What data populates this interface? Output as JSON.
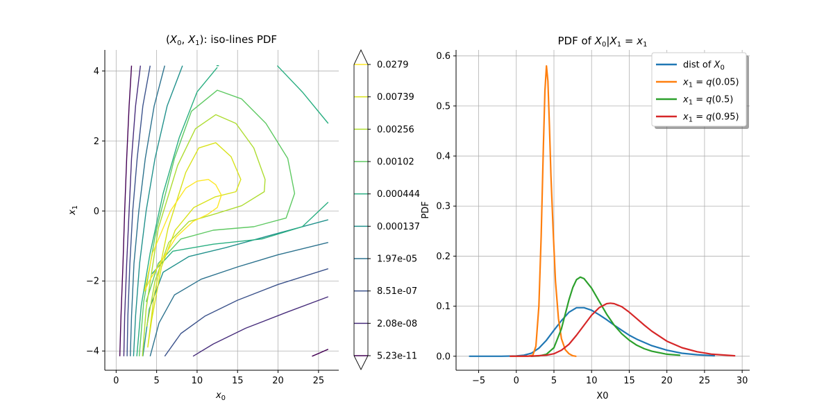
{
  "chart_data": [
    {
      "type": "contour",
      "title": "(X0, X1): iso-lines PDF",
      "title_parts": {
        "open": "(",
        "v0": "X",
        "s0": "0",
        "comma": ", ",
        "v1": "X",
        "s1": "1",
        "close": "): iso-lines PDF"
      },
      "xlabel": {
        "v": "x",
        "s": "0"
      },
      "ylabel": {
        "v": "x",
        "s": "1"
      },
      "xlim": [
        -1.4,
        27.5
      ],
      "ylim": [
        -4.55,
        4.6
      ],
      "xticks": [
        0,
        5,
        10,
        15,
        20,
        25
      ],
      "yticks": [
        -4,
        -2,
        0,
        2,
        4
      ],
      "ytick_labels": [
        "−4",
        "−2",
        "0",
        "2",
        "4"
      ],
      "grid": true,
      "colorbar": {
        "levels": [
          "5.23e-11",
          "2.08e-08",
          "8.51e-07",
          "1.97e-05",
          "0.000137",
          "0.000444",
          "0.00102",
          "0.00256",
          "0.00739",
          "0.0279"
        ],
        "colors": [
          "#440154",
          "#472d7b",
          "#3b528b",
          "#2c728e",
          "#21918c",
          "#28ae80",
          "#5ec962",
          "#addc30",
          "#d8e219",
          "#fde725"
        ],
        "extend": "both"
      },
      "contours": [
        {
          "level": "5.23e-11",
          "color": "#440154",
          "segments": [
            [
              [
                1.9,
                4.15
              ],
              [
                1.6,
                3
              ],
              [
                1.3,
                1.5
              ],
              [
                1.05,
                0
              ],
              [
                0.85,
                -1.5
              ],
              [
                0.6,
                -3
              ],
              [
                0.45,
                -4.15
              ]
            ],
            [
              [
                24.2,
                -4.15
              ],
              [
                25.2,
                -4.05
              ],
              [
                26.2,
                -3.95
              ]
            ]
          ]
        },
        {
          "level": "2.08e-08",
          "color": "#472d7b",
          "segments": [
            [
              [
                3.0,
                4.15
              ],
              [
                2.4,
                3
              ],
              [
                1.9,
                1.5
              ],
              [
                1.6,
                0
              ],
              [
                1.3,
                -1.5
              ],
              [
                1.05,
                -3
              ],
              [
                0.95,
                -4.15
              ]
            ],
            [
              [
                9.5,
                -4.15
              ],
              [
                12,
                -3.8
              ],
              [
                16,
                -3.35
              ],
              [
                21,
                -2.9
              ],
              [
                26.2,
                -2.45
              ]
            ]
          ]
        },
        {
          "level": "8.51e-07",
          "color": "#3b528b",
          "segments": [
            [
              [
                4.2,
                4.15
              ],
              [
                3.3,
                3
              ],
              [
                2.6,
                1.5
              ],
              [
                2.05,
                0
              ],
              [
                1.7,
                -1.5
              ],
              [
                1.45,
                -3
              ],
              [
                1.35,
                -4.15
              ]
            ],
            [
              [
                6.0,
                -4.15
              ],
              [
                8,
                -3.5
              ],
              [
                11,
                -3.0
              ],
              [
                15,
                -2.55
              ],
              [
                20,
                -2.1
              ],
              [
                26.2,
                -1.65
              ]
            ]
          ]
        },
        {
          "level": "1.97e-05",
          "color": "#2c728e",
          "segments": [
            [
              [
                6.0,
                4.15
              ],
              [
                4.7,
                3
              ],
              [
                3.6,
                1.5
              ],
              [
                2.8,
                0
              ],
              [
                2.2,
                -1.5
              ],
              [
                1.9,
                -3
              ],
              [
                1.75,
                -4.15
              ]
            ],
            [
              [
                4.2,
                -4.15
              ],
              [
                5.3,
                -3.2
              ],
              [
                7.2,
                -2.4
              ],
              [
                10.5,
                -1.95
              ],
              [
                15,
                -1.6
              ],
              [
                20,
                -1.25
              ],
              [
                26.2,
                -0.9
              ]
            ]
          ]
        },
        {
          "level": "0.000137",
          "color": "#21918c",
          "segments": [
            [
              [
                8.2,
                4.15
              ],
              [
                6.3,
                3
              ],
              [
                4.8,
                1.5
              ],
              [
                3.7,
                0
              ],
              [
                2.9,
                -1.5
              ],
              [
                2.4,
                -3
              ],
              [
                2.15,
                -4.15
              ]
            ],
            [
              [
                3.3,
                -4.15
              ],
              [
                4.1,
                -2.8
              ],
              [
                5.8,
                -1.75
              ],
              [
                9,
                -1.3
              ],
              [
                13.5,
                -1.05
              ],
              [
                19,
                -0.7
              ],
              [
                26.2,
                -0.25
              ]
            ]
          ]
        },
        {
          "level": "0.000444",
          "color": "#28ae80",
          "segments": [
            [
              [
                12.4,
                4.15
              ],
              [
                12.7,
                4.15
              ]
            ],
            [
              [
                19.9,
                4.15
              ],
              [
                23,
                3.4
              ],
              [
                26.2,
                2.5
              ]
            ],
            [
              [
                2.55,
                -4.15
              ],
              [
                3.1,
                -2.7
              ],
              [
                4.2,
                -1.2
              ],
              [
                5.8,
                0.5
              ],
              [
                7.8,
                2.1
              ],
              [
                10,
                3.4
              ],
              [
                12.5,
                4.1
              ]
            ],
            [
              [
                26.2,
                0.25
              ],
              [
                23,
                -0.45
              ],
              [
                18,
                -0.8
              ],
              [
                12,
                -0.95
              ],
              [
                7,
                -1.15
              ],
              [
                4.4,
                -1.8
              ]
            ]
          ]
        },
        {
          "level": "0.00102",
          "color": "#5ec962",
          "segments": [
            [
              [
                2.85,
                -4.15
              ],
              [
                3.4,
                -2.6
              ],
              [
                4.9,
                -0.6
              ],
              [
                7.2,
                1.5
              ],
              [
                9.3,
                2.85
              ],
              [
                12.5,
                3.45
              ],
              [
                15.5,
                3.2
              ],
              [
                18.5,
                2.5
              ],
              [
                21.2,
                1.5
              ],
              [
                22.05,
                0.5
              ],
              [
                21,
                -0.2
              ],
              [
                17,
                -0.45
              ],
              [
                12,
                -0.55
              ],
              [
                8,
                -0.8
              ],
              [
                5.2,
                -1.5
              ],
              [
                3.7,
                -2.6
              ]
            ]
          ]
        },
        {
          "level": "0.00256",
          "color": "#addc30",
          "segments": [
            [
              [
                3.25,
                -4.15
              ],
              [
                3.7,
                -2.8
              ],
              [
                5.2,
                -0.5
              ],
              [
                7.6,
                1.3
              ],
              [
                9.8,
                2.35
              ],
              [
                12.3,
                2.75
              ],
              [
                14.8,
                2.5
              ],
              [
                17,
                1.8
              ],
              [
                18.4,
                0.9
              ],
              [
                18.3,
                0.55
              ],
              [
                15.5,
                0.15
              ],
              [
                12,
                -0.1
              ],
              [
                9,
                -0.3
              ],
              [
                6.5,
                -0.9
              ],
              [
                4.8,
                -2.0
              ],
              [
                3.8,
                -3.3
              ]
            ]
          ]
        },
        {
          "level": "0.00739",
          "color": "#d8e219",
          "segments": [
            [
              [
                3.9,
                -3.9
              ],
              [
                4.7,
                -2.4
              ],
              [
                6.4,
                -0.5
              ],
              [
                8.6,
                1.1
              ],
              [
                10.2,
                1.8
              ],
              [
                12.3,
                1.95
              ],
              [
                14.2,
                1.55
              ],
              [
                15.4,
                0.9
              ],
              [
                14.8,
                0.55
              ],
              [
                12.2,
                0.4
              ],
              [
                9.6,
                0.1
              ],
              [
                7.3,
                -0.55
              ],
              [
                5.6,
                -1.6
              ],
              [
                4.4,
                -3.1
              ],
              [
                3.9,
                -3.9
              ]
            ]
          ]
        },
        {
          "level": "0.0279",
          "color": "#fde725",
          "segments": [
            [
              [
                3.5,
                -2.3
              ],
              [
                4.5,
                -1.2
              ],
              [
                6.7,
                0
              ],
              [
                8.6,
                0.65
              ],
              [
                10,
                0.85
              ],
              [
                11.4,
                0.9
              ],
              [
                12.3,
                0.75
              ],
              [
                13,
                0.45
              ],
              [
                12.5,
                0.1
              ],
              [
                11.3,
                -0.1
              ],
              [
                9.5,
                -0.3
              ],
              [
                7.4,
                -0.75
              ],
              [
                5.4,
                -1.5
              ],
              [
                4.1,
                -2.0
              ],
              [
                3.5,
                -2.3
              ]
            ]
          ]
        }
      ]
    },
    {
      "type": "line",
      "title": "PDF of X0|X1 = x1",
      "title_parts": {
        "pre": "PDF of ",
        "v0": "X",
        "s0": "0",
        "bar": "|",
        "v1": "X",
        "s1": "1",
        "eq": " = ",
        "v2": "x",
        "s2": "1"
      },
      "xlabel": "X0",
      "ylabel": "PDF",
      "xlim": [
        -8,
        31
      ],
      "ylim": [
        -0.028,
        0.612
      ],
      "xticks": [
        -5,
        0,
        5,
        10,
        15,
        20,
        25,
        30
      ],
      "xtick_labels": [
        "−5",
        "0",
        "5",
        "10",
        "15",
        "20",
        "25",
        "30"
      ],
      "yticks": [
        0.0,
        0.1,
        0.2,
        0.3,
        0.4,
        0.5,
        0.6
      ],
      "ytick_labels": [
        "0.0",
        "0.1",
        "0.2",
        "0.3",
        "0.4",
        "0.5",
        "0.6"
      ],
      "grid": true,
      "legend": "top-right",
      "series": [
        {
          "name": "dist of X0",
          "legend_parts": {
            "pre": "dist of ",
            "v": "X",
            "s": "0"
          },
          "color": "#1f77b4",
          "x": [
            -6.2,
            -2,
            0,
            1,
            2,
            3,
            4,
            5,
            6,
            7,
            8,
            9,
            10,
            11,
            12,
            13,
            14,
            15,
            16,
            18,
            20,
            22,
            24,
            26.3
          ],
          "y": [
            0,
            0,
            0.0005,
            0.002,
            0.006,
            0.016,
            0.032,
            0.052,
            0.071,
            0.088,
            0.097,
            0.097,
            0.092,
            0.083,
            0.073,
            0.062,
            0.052,
            0.042,
            0.034,
            0.021,
            0.012,
            0.006,
            0.003,
            0.001
          ]
        },
        {
          "name": "x1 = q(0.05)",
          "legend_parts": {
            "v": "x",
            "s": "1",
            "eq": " = ",
            "q": "q",
            "arg": "(0.05)"
          },
          "color": "#ff7f0e",
          "x": [
            -0.8,
            1.5,
            2.2,
            2.6,
            3.0,
            3.3,
            3.6,
            3.8,
            4.0,
            4.2,
            4.4,
            4.6,
            4.9,
            5.2,
            5.6,
            6.0,
            6.5,
            7.0,
            7.5,
            7.9
          ],
          "y": [
            0,
            0,
            0.002,
            0.02,
            0.1,
            0.24,
            0.42,
            0.53,
            0.58,
            0.55,
            0.46,
            0.36,
            0.25,
            0.15,
            0.075,
            0.035,
            0.013,
            0.005,
            0.001,
            0
          ]
        },
        {
          "name": "x1 = q(0.5)",
          "legend_parts": {
            "v": "x",
            "s": "1",
            "eq": " = ",
            "q": "q",
            "arg": "(0.5)"
          },
          "color": "#2ca02c",
          "x": [
            2.0,
            3,
            4,
            5,
            6,
            7,
            7.5,
            8,
            8.5,
            9,
            10,
            11,
            12,
            13,
            14,
            15,
            16,
            17,
            18,
            20,
            21.7
          ],
          "y": [
            0,
            0.0005,
            0.004,
            0.017,
            0.055,
            0.113,
            0.137,
            0.153,
            0.158,
            0.155,
            0.136,
            0.11,
            0.084,
            0.062,
            0.045,
            0.032,
            0.022,
            0.015,
            0.01,
            0.004,
            0.002
          ]
        },
        {
          "name": "x1 = q(0.95)",
          "legend_parts": {
            "v": "x",
            "s": "1",
            "eq": " = ",
            "q": "q",
            "arg": "(0.95)"
          },
          "color": "#d62728",
          "x": [
            -0.8,
            2,
            4,
            5,
            6,
            7,
            8,
            9,
            10,
            11,
            12,
            12.5,
            13,
            14,
            15,
            16,
            17,
            18,
            20,
            22,
            24,
            26,
            29
          ],
          "y": [
            0,
            0.0003,
            0.002,
            0.005,
            0.012,
            0.024,
            0.042,
            0.062,
            0.082,
            0.097,
            0.105,
            0.106,
            0.105,
            0.099,
            0.088,
            0.075,
            0.062,
            0.05,
            0.03,
            0.017,
            0.009,
            0.004,
            0.001
          ]
        }
      ]
    }
  ]
}
